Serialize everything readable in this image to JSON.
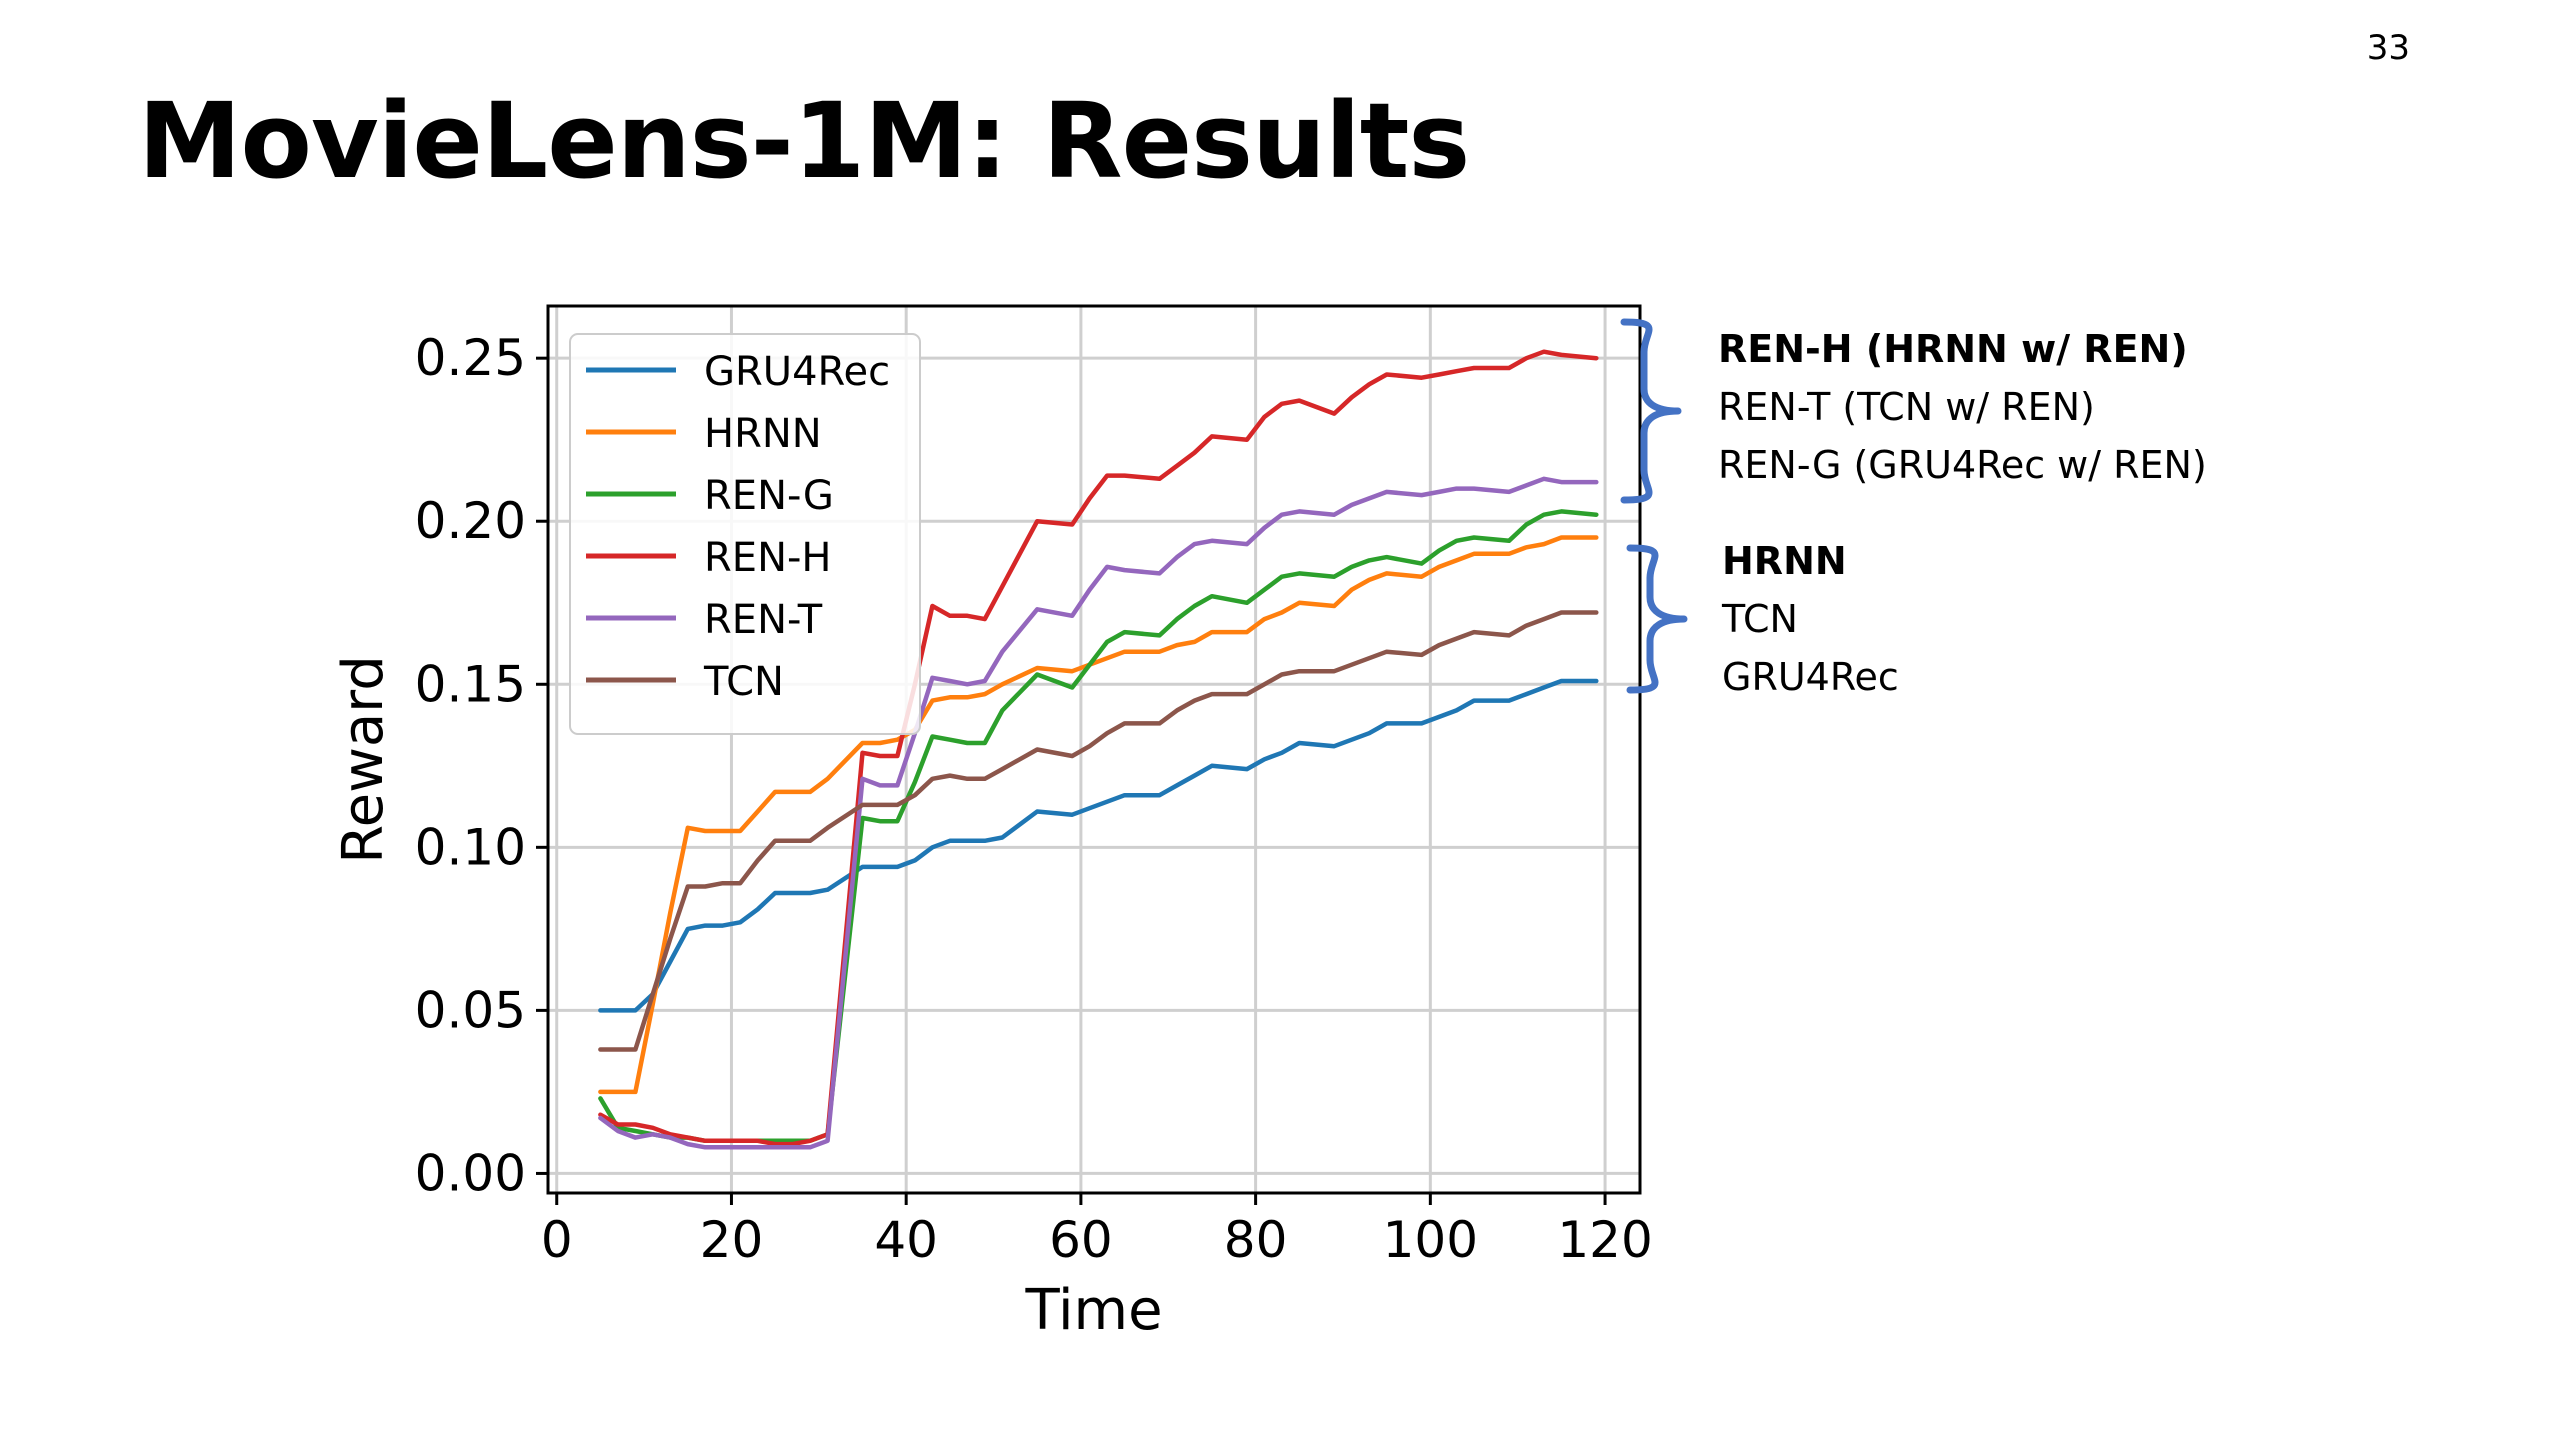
{
  "slide": {
    "number": "33",
    "title": "MovieLens-1M: Results"
  },
  "annotations": {
    "group1": [
      "REN-H (HRNN w/ REN)",
      "REN-T (TCN w/ REN)",
      "REN-G (GRU4Rec w/ REN)"
    ],
    "group2": [
      "HRNN",
      "TCN",
      "GRU4Rec"
    ],
    "brace_color": "#4472c4"
  },
  "chart_data": {
    "type": "line",
    "xlabel": "Time",
    "ylabel": "Reward",
    "xlim": [
      -1,
      124
    ],
    "ylim": [
      -0.006,
      0.266
    ],
    "xticks": [
      "0",
      "20",
      "40",
      "60",
      "80",
      "100",
      "120"
    ],
    "yticks": [
      "0.00",
      "0.05",
      "0.10",
      "0.15",
      "0.20",
      "0.25"
    ],
    "grid": true,
    "legend_position": "upper-left",
    "x": [
      5,
      7,
      9,
      11,
      13,
      15,
      17,
      19,
      21,
      23,
      25,
      27,
      29,
      31,
      35,
      37,
      39,
      41,
      43,
      45,
      47,
      49,
      51,
      55,
      59,
      61,
      63,
      65,
      69,
      71,
      73,
      75,
      79,
      81,
      83,
      85,
      89,
      91,
      93,
      95,
      99,
      101,
      103,
      105,
      109,
      111,
      113,
      115,
      119
    ],
    "series": [
      {
        "name": "GRU4Rec",
        "color": "#1f77b4",
        "values": [
          0.05,
          0.05,
          0.05,
          0.055,
          0.065,
          0.075,
          0.076,
          0.076,
          0.077,
          0.081,
          0.086,
          0.086,
          0.086,
          0.087,
          0.094,
          0.094,
          0.094,
          0.096,
          0.1,
          0.102,
          0.102,
          0.102,
          0.103,
          0.111,
          0.11,
          0.112,
          0.114,
          0.116,
          0.116,
          0.119,
          0.122,
          0.125,
          0.124,
          0.127,
          0.129,
          0.132,
          0.131,
          0.133,
          0.135,
          0.138,
          0.138,
          0.14,
          0.142,
          0.145,
          0.145,
          0.147,
          0.149,
          0.151,
          0.151
        ]
      },
      {
        "name": "HRNN",
        "color": "#ff7f0e",
        "values": [
          0.025,
          0.025,
          0.025,
          0.052,
          0.08,
          0.106,
          0.105,
          0.105,
          0.105,
          0.111,
          0.117,
          0.117,
          0.117,
          0.121,
          0.132,
          0.132,
          0.133,
          0.136,
          0.145,
          0.146,
          0.146,
          0.147,
          0.15,
          0.155,
          0.154,
          0.156,
          0.158,
          0.16,
          0.16,
          0.162,
          0.163,
          0.166,
          0.166,
          0.17,
          0.172,
          0.175,
          0.174,
          0.179,
          0.182,
          0.184,
          0.183,
          0.186,
          0.188,
          0.19,
          0.19,
          0.192,
          0.193,
          0.195,
          0.195
        ]
      },
      {
        "name": "REN-G",
        "color": "#2ca02c",
        "values": [
          0.023,
          0.014,
          0.013,
          0.012,
          0.011,
          0.011,
          0.01,
          0.01,
          0.01,
          0.01,
          0.01,
          0.01,
          0.01,
          0.012,
          0.109,
          0.108,
          0.108,
          0.12,
          0.134,
          0.133,
          0.132,
          0.132,
          0.142,
          0.153,
          0.149,
          0.156,
          0.163,
          0.166,
          0.165,
          0.17,
          0.174,
          0.177,
          0.175,
          0.179,
          0.183,
          0.184,
          0.183,
          0.186,
          0.188,
          0.189,
          0.187,
          0.191,
          0.194,
          0.195,
          0.194,
          0.199,
          0.202,
          0.203,
          0.202
        ]
      },
      {
        "name": "REN-H",
        "color": "#d62728",
        "values": [
          0.018,
          0.015,
          0.015,
          0.014,
          0.012,
          0.011,
          0.01,
          0.01,
          0.01,
          0.01,
          0.009,
          0.009,
          0.01,
          0.012,
          0.129,
          0.128,
          0.128,
          0.15,
          0.174,
          0.171,
          0.171,
          0.17,
          0.18,
          0.2,
          0.199,
          0.207,
          0.214,
          0.214,
          0.213,
          0.217,
          0.221,
          0.226,
          0.225,
          0.232,
          0.236,
          0.237,
          0.233,
          0.238,
          0.242,
          0.245,
          0.244,
          0.245,
          0.246,
          0.247,
          0.247,
          0.25,
          0.252,
          0.251,
          0.25
        ]
      },
      {
        "name": "REN-T",
        "color": "#9467bd",
        "values": [
          0.017,
          0.013,
          0.011,
          0.012,
          0.011,
          0.009,
          0.008,
          0.008,
          0.008,
          0.008,
          0.008,
          0.008,
          0.008,
          0.01,
          0.121,
          0.119,
          0.119,
          0.135,
          0.152,
          0.151,
          0.15,
          0.151,
          0.16,
          0.173,
          0.171,
          0.179,
          0.186,
          0.185,
          0.184,
          0.189,
          0.193,
          0.194,
          0.193,
          0.198,
          0.202,
          0.203,
          0.202,
          0.205,
          0.207,
          0.209,
          0.208,
          0.209,
          0.21,
          0.21,
          0.209,
          0.211,
          0.213,
          0.212,
          0.212
        ]
      },
      {
        "name": "TCN",
        "color": "#8c564b",
        "values": [
          0.038,
          0.038,
          0.038,
          0.055,
          0.072,
          0.088,
          0.088,
          0.089,
          0.089,
          0.096,
          0.102,
          0.102,
          0.102,
          0.106,
          0.113,
          0.113,
          0.113,
          0.116,
          0.121,
          0.122,
          0.121,
          0.121,
          0.124,
          0.13,
          0.128,
          0.131,
          0.135,
          0.138,
          0.138,
          0.142,
          0.145,
          0.147,
          0.147,
          0.15,
          0.153,
          0.154,
          0.154,
          0.156,
          0.158,
          0.16,
          0.159,
          0.162,
          0.164,
          0.166,
          0.165,
          0.168,
          0.17,
          0.172,
          0.172
        ]
      }
    ]
  }
}
